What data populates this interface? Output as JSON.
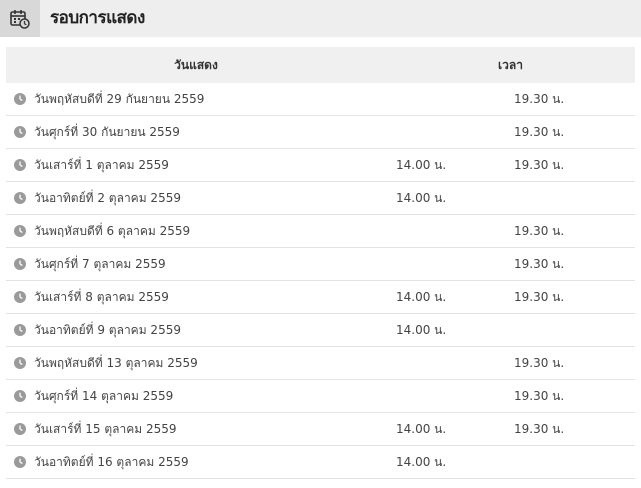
{
  "header": {
    "title": "รอบการแสดง",
    "icon": "calendar-clock-icon"
  },
  "table": {
    "columns": [
      "วันแสดง",
      "เวลา"
    ],
    "rows": [
      {
        "date": "วันพฤหัสบดีที่ 29 กันยายน 2559",
        "time1": "",
        "time2": "19.30 น."
      },
      {
        "date": "วันศุกร์ที่ 30 กันยายน 2559",
        "time1": "",
        "time2": "19.30 น."
      },
      {
        "date": "วันเสาร์ที่ 1 ตุลาคม 2559",
        "time1": "14.00 น.",
        "time2": "19.30 น."
      },
      {
        "date": "วันอาทิตย์ที่ 2 ตุลาคม 2559",
        "time1": "14.00 น.",
        "time2": ""
      },
      {
        "date": "วันพฤหัสบดีที่ 6 ตุลาคม 2559",
        "time1": "",
        "time2": "19.30 น."
      },
      {
        "date": "วันศุกร์ที่ 7 ตุลาคม 2559",
        "time1": "",
        "time2": "19.30 น."
      },
      {
        "date": "วันเสาร์ที่ 8 ตุลาคม 2559",
        "time1": "14.00 น.",
        "time2": "19.30 น."
      },
      {
        "date": "วันอาทิตย์ที่ 9 ตุลาคม 2559",
        "time1": "14.00 น.",
        "time2": ""
      },
      {
        "date": "วันพฤหัสบดีที่ 13 ตุลาคม 2559",
        "time1": "",
        "time2": "19.30 น."
      },
      {
        "date": "วันศุกร์ที่ 14 ตุลาคม 2559",
        "time1": "",
        "time2": "19.30 น."
      },
      {
        "date": "วันเสาร์ที่ 15 ตุลาคม 2559",
        "time1": "14.00 น.",
        "time2": "19.30 น."
      },
      {
        "date": "วันอาทิตย์ที่ 16 ตุลาคม 2559",
        "time1": "14.00 น.",
        "time2": ""
      }
    ]
  },
  "colors": {
    "header_bg": "#eeeeee",
    "icon_box_bg": "#d8d8d8",
    "table_head_bg": "#f0f0f0",
    "row_divider": "#e2e2e2",
    "clock_icon": "#9a9a9a"
  }
}
